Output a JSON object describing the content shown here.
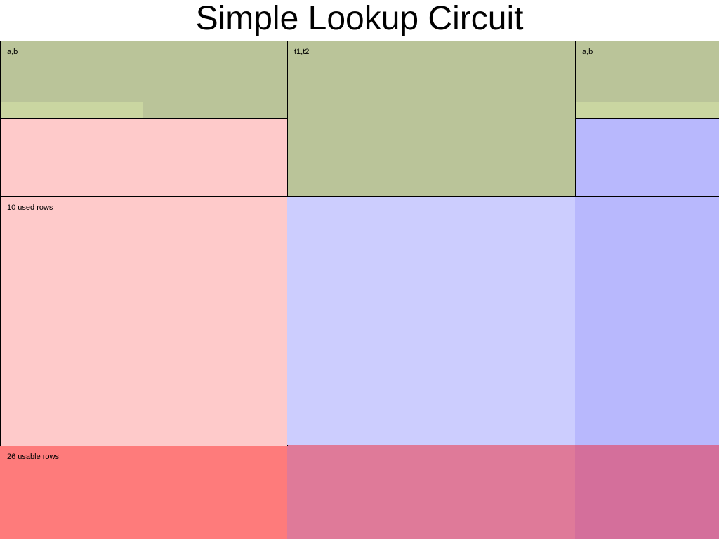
{
  "title": "Simple Lookup Circuit",
  "labels": {
    "input_left": "a,b",
    "table": "t1,t2",
    "input_right": "a,b",
    "used_rows": "10 used rows",
    "usable_rows": "26 usable rows"
  },
  "colors": {
    "olive": "#bac499",
    "olive_light": "#cad6a1",
    "pink": "#fecaca",
    "lavender": "#cccdfe",
    "periwinkle": "#b8b8fd",
    "red": "#fe7b7b",
    "rose": "#df7a99",
    "mauve": "#d46f9b"
  }
}
